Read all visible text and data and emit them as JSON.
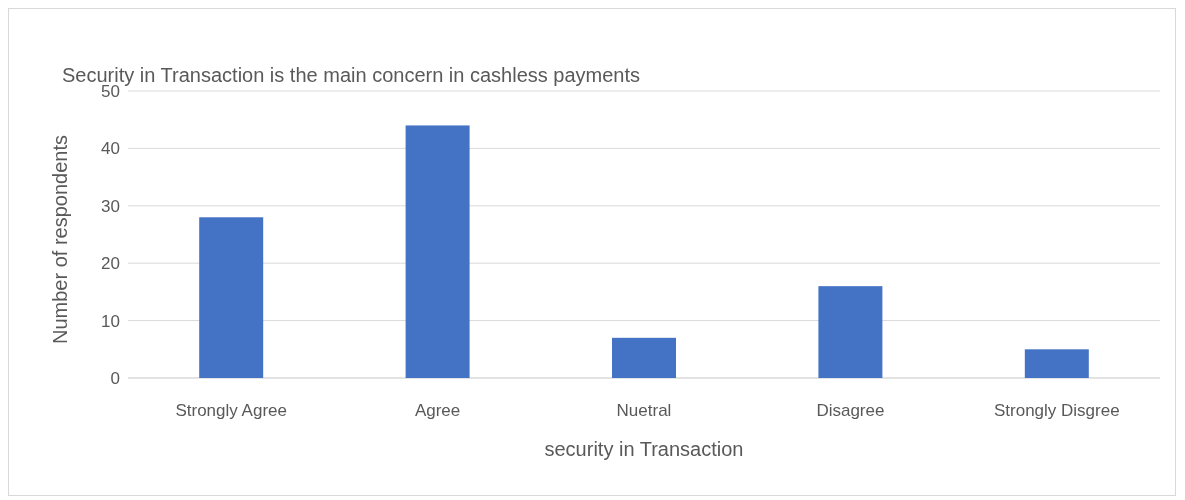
{
  "chart_data": {
    "type": "bar",
    "title": "Security in Transaction is the main concern in cashless payments",
    "xlabel": "security in Transaction",
    "ylabel": "Number of respondents",
    "categories": [
      "Strongly Agree",
      "Agree",
      "Nuetral",
      "Disagree",
      "Strongly Disgree"
    ],
    "values": [
      28,
      44,
      7,
      16,
      5
    ],
    "color": "#4472c4",
    "ylim": [
      0,
      50
    ],
    "yticks": [
      0,
      10,
      20,
      30,
      40,
      50
    ],
    "grid": "y"
  }
}
